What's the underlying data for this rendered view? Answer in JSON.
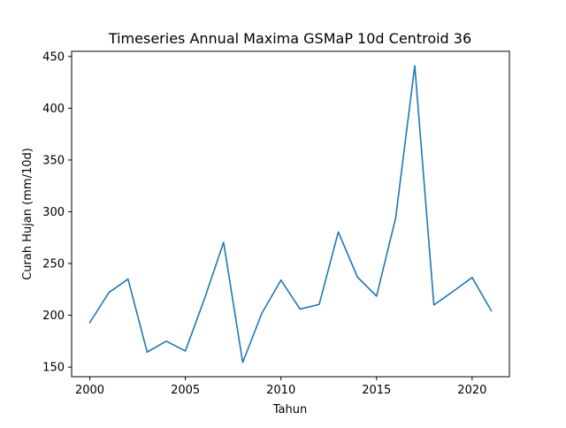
{
  "chart_data": {
    "type": "line",
    "title": "Timeseries Annual Maxima GSMaP 10d Centroid 36",
    "xlabel": "Tahun",
    "ylabel": "Curah Hujan (mm/10d)",
    "xlim": [
      1999.05,
      2021.95
    ],
    "ylim": [
      140.7,
      455.0
    ],
    "xticks": [
      "2000",
      "2005",
      "2010",
      "2015",
      "2020"
    ],
    "yticks": [
      "150",
      "200",
      "250",
      "300",
      "350",
      "400",
      "450"
    ],
    "grid": false,
    "line_color": "#1f77b4",
    "x": [
      2000,
      2001,
      2002,
      2003,
      2004,
      2005,
      2006,
      2007,
      2008,
      2009,
      2010,
      2011,
      2012,
      2013,
      2014,
      2015,
      2016,
      2017,
      2018,
      2019,
      2020,
      2021
    ],
    "values": [
      193,
      222,
      235,
      164.5,
      175,
      165.5,
      216,
      270.5,
      154.5,
      202,
      234,
      206,
      210.5,
      280.5,
      237,
      218.5,
      294,
      441,
      210,
      223,
      236.5,
      204.5
    ]
  }
}
